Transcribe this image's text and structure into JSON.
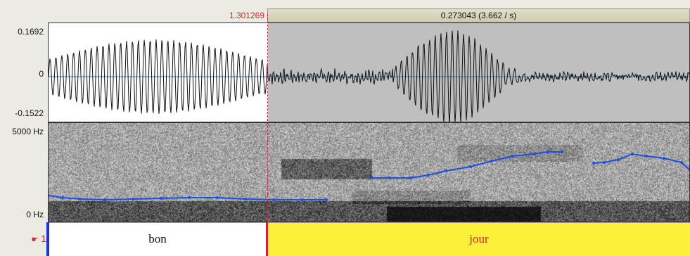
{
  "ruler": {
    "cursor_time": "1.301269",
    "selection_duration": "0.273043 (3.662 / s)"
  },
  "waveform": {
    "y_max": "0.1692",
    "y_zero": "0",
    "y_min": "-0.1522"
  },
  "spectrogram": {
    "freq_max": "5000 Hz",
    "freq_min": "0 Hz"
  },
  "tier": {
    "number": "1",
    "marker_icon": "pointing-hand-icon",
    "intervals": [
      {
        "text": "bon"
      },
      {
        "text": "jour"
      }
    ]
  },
  "colors": {
    "selection_bg": "#bfbfbf",
    "cursor": "#d0252a",
    "pitch": "#1f4fe0",
    "interval_selected": "#fcf03a",
    "boundary": "#1f2fd4"
  }
}
